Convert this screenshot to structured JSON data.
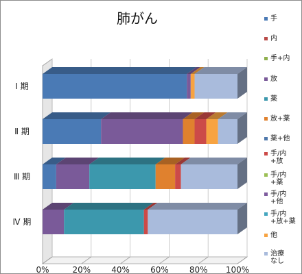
{
  "chart_data": {
    "type": "bar",
    "orientation": "horizontal",
    "stacked": "percent",
    "title": "肺がん",
    "categories": [
      "Ⅰ 期",
      "Ⅱ 期",
      "Ⅲ 期",
      "Ⅳ 期"
    ],
    "x_ticks": [
      "0%",
      "20%",
      "40%",
      "60%",
      "80%",
      "100%"
    ],
    "xlim": [
      0,
      100
    ],
    "legend_position": "right",
    "series": [
      {
        "name": [
          "手"
        ],
        "color": "#4a7ab5",
        "values": [
          74,
          30,
          7,
          0
        ]
      },
      {
        "name": [
          "内"
        ],
        "color": "#b94a48",
        "values": [
          0,
          0,
          0,
          0
        ]
      },
      {
        "name": [
          "手+内"
        ],
        "color": "#8fb04d",
        "values": [
          0,
          0,
          0,
          0
        ]
      },
      {
        "name": [
          "放"
        ],
        "color": "#7a5a99",
        "values": [
          2,
          42,
          17,
          11
        ]
      },
      {
        "name": [
          "薬"
        ],
        "color": "#3c98ad",
        "values": [
          0,
          0,
          34,
          41
        ]
      },
      {
        "name": [
          "放+薬"
        ],
        "color": "#e0812e",
        "values": [
          0,
          6,
          10,
          0
        ]
      },
      {
        "name": [
          "薬+他"
        ],
        "color": "#4f78ab",
        "values": [
          0,
          0,
          0,
          0
        ]
      },
      {
        "name": [
          "手/内",
          "+放"
        ],
        "color": "#cc4a48",
        "values": [
          0,
          6,
          3,
          2
        ]
      },
      {
        "name": [
          "手/内",
          "+薬"
        ],
        "color": "#9cbf55",
        "values": [
          0,
          0,
          0,
          0
        ]
      },
      {
        "name": [
          "手/内",
          "+他"
        ],
        "color": "#7e5c9e",
        "values": [
          0,
          0,
          0,
          0
        ]
      },
      {
        "name": [
          "手/内",
          "+放+薬"
        ],
        "color": "#45a6bf",
        "values": [
          0,
          0,
          0,
          0
        ]
      },
      {
        "name": [
          "他"
        ],
        "color": "#f7a341",
        "values": [
          2,
          6,
          0,
          0
        ]
      },
      {
        "name": [
          "治療",
          "なし"
        ],
        "color": "#a9bbdc",
        "values": [
          22,
          10,
          29,
          46
        ]
      }
    ]
  }
}
